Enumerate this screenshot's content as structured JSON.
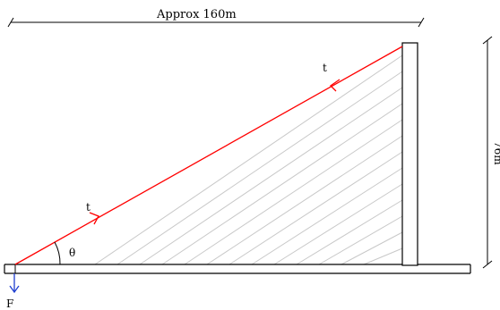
{
  "labels": {
    "span": "Approx 160m",
    "height": "76m",
    "tension_upper": "t",
    "tension_lower": "t",
    "angle": "θ",
    "force": "F"
  },
  "colors": {
    "cable": "#ff0000",
    "stays": "#c8c8c8",
    "force_arrow": "#1f3fd0",
    "structure": "#000000"
  },
  "stay_count": 13
}
